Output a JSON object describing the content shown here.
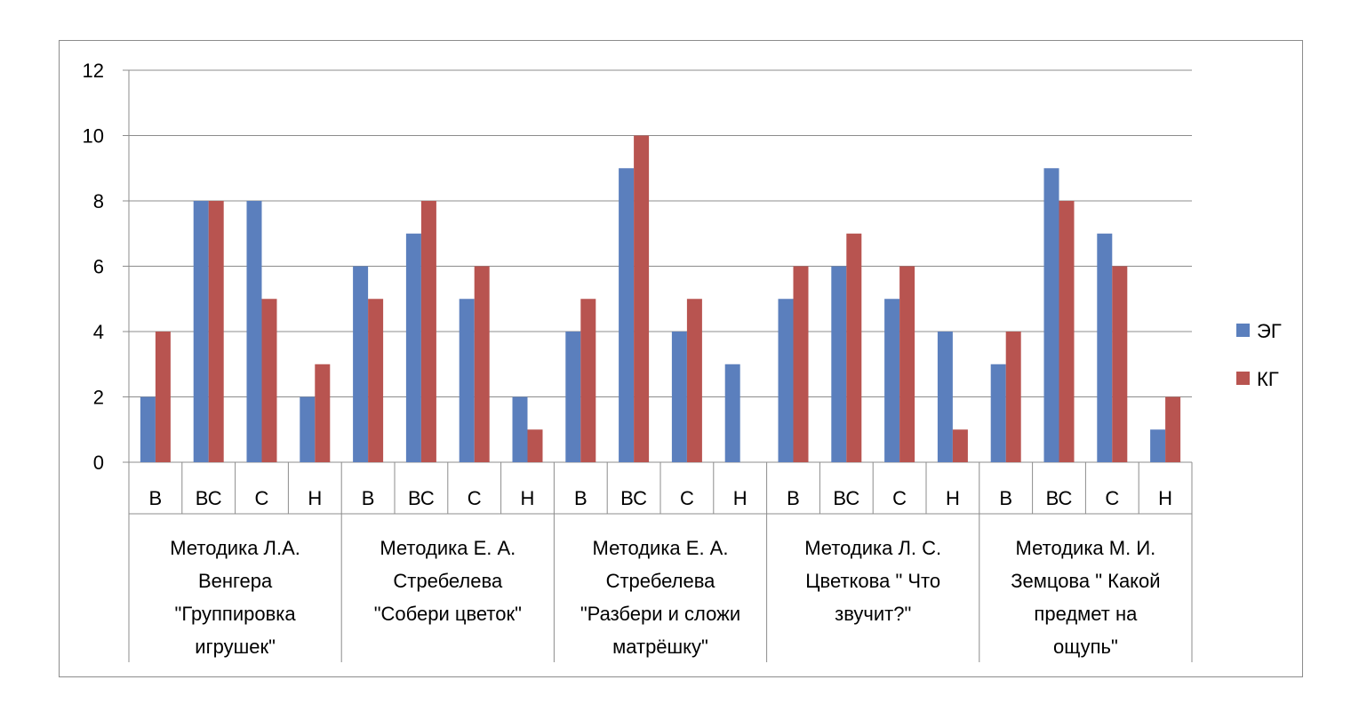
{
  "chart_data": {
    "type": "bar",
    "ylim": [
      0,
      12
    ],
    "y_ticks": [
      "0",
      "2",
      "4",
      "6",
      "8",
      "10",
      "12"
    ],
    "grid": true,
    "legend_position": "right",
    "groups": [
      {
        "label_lines": [
          "Методика Л.А.",
          "Венгера",
          "\"Группировка",
          "игрушек\""
        ]
      },
      {
        "label_lines": [
          "Методика Е. А.",
          "Стребелева",
          "\"Собери цветок\""
        ]
      },
      {
        "label_lines": [
          "Методика Е. А.",
          "Стребелева",
          "\"Разбери и сложи",
          "матрёшку\""
        ]
      },
      {
        "label_lines": [
          "Методика Л. С.",
          "Цветкова \" Что",
          "звучит?\""
        ]
      },
      {
        "label_lines": [
          "Методика М. И.",
          "Земцова \" Какой",
          "предмет на",
          "ощупь\""
        ]
      }
    ],
    "categories": [
      "В",
      "ВС",
      "С",
      "Н",
      "В",
      "ВС",
      "С",
      "Н",
      "В",
      "ВС",
      "С",
      "Н",
      "В",
      "ВС",
      "С",
      "Н",
      "В",
      "ВС",
      "С",
      "Н"
    ],
    "series": [
      {
        "name": "ЭГ",
        "color": "#5b7fbd",
        "values": [
          2,
          8,
          8,
          2,
          6,
          7,
          5,
          2,
          4,
          9,
          4,
          3,
          5,
          6,
          5,
          4,
          3,
          9,
          7,
          1
        ]
      },
      {
        "name": "КГ",
        "color": "#b85450",
        "values": [
          4,
          8,
          5,
          3,
          5,
          8,
          6,
          1,
          5,
          10,
          5,
          0,
          6,
          7,
          6,
          1,
          4,
          8,
          6,
          2
        ]
      }
    ]
  }
}
